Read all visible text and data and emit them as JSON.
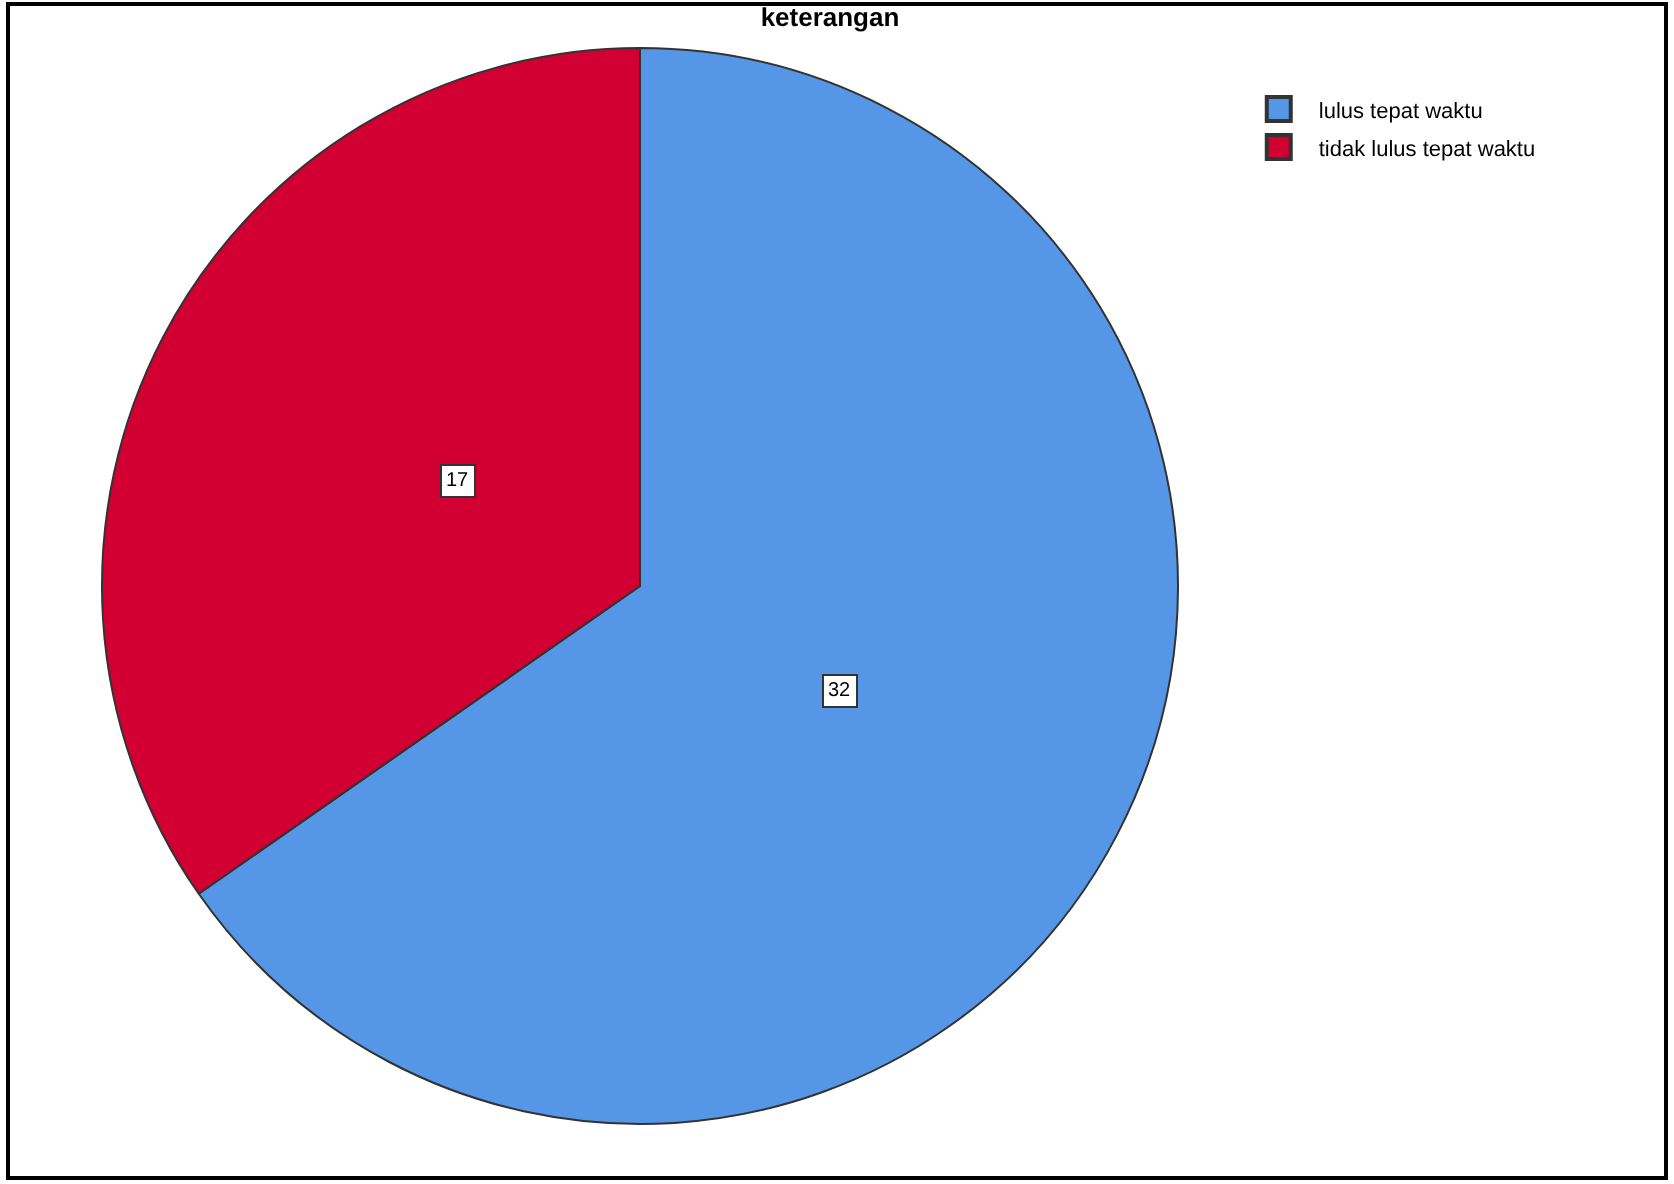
{
  "chart_data": {
    "type": "pie",
    "title": "keterangan",
    "categories": [
      "lulus tepat waktu",
      "tidak lulus tepat waktu"
    ],
    "values": [
      32,
      17
    ],
    "colors": [
      "#5596e6",
      "#d20032"
    ],
    "data_labels": true,
    "legend": "top right"
  }
}
